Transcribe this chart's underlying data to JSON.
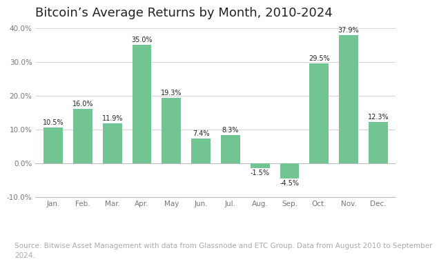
{
  "title": "Bitcoin’s Average Returns by Month, 2010-2024",
  "months": [
    "Jan.",
    "Feb.",
    "Mar.",
    "Apr.",
    "May",
    "Jun.",
    "Jul.",
    "Aug.",
    "Sep.",
    "Oct.",
    "Nov.",
    "Dec."
  ],
  "values": [
    10.5,
    16.0,
    11.9,
    35.0,
    19.3,
    7.4,
    8.3,
    -1.5,
    -4.5,
    29.5,
    37.9,
    12.3
  ],
  "bar_color": "#72c493",
  "background_color": "#ffffff",
  "grid_color": "#cccccc",
  "text_color": "#222222",
  "axis_text_color": "#777777",
  "source_text": "Source: Bitwise Asset Management with data from Glassnode and ETC Group. Data from August 2010 to September\n2024.",
  "ylim": [
    -10,
    40
  ],
  "yticks": [
    -10,
    0,
    10,
    20,
    30,
    40
  ],
  "ytick_labels": [
    "-10.0%",
    "0.0%",
    "10.0%",
    "20.0%",
    "30.0%",
    "40.0%"
  ],
  "title_fontsize": 13,
  "label_fontsize": 7,
  "tick_fontsize": 7.5,
  "source_fontsize": 7.5
}
